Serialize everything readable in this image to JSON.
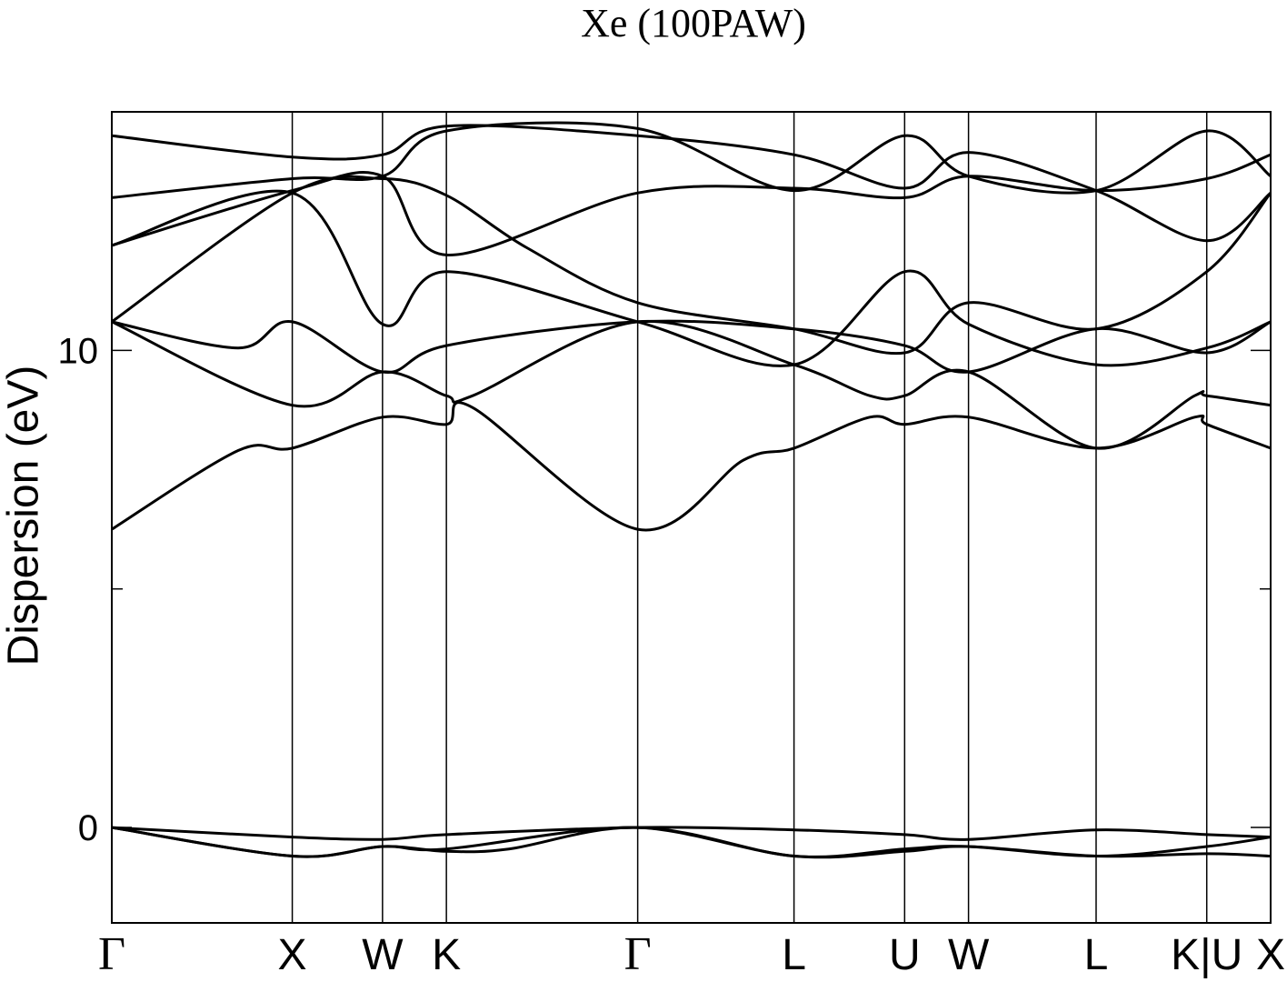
{
  "chart_data": {
    "type": "line",
    "title": "Xe (100PAW)",
    "xlabel": "",
    "ylabel": "Dispersion (eV)",
    "ylim": [
      -2,
      15
    ],
    "yticks": [
      0,
      10
    ],
    "ytick_labels": [
      "0",
      "10"
    ],
    "grid": false,
    "legend": "none",
    "kpoints": [
      {
        "label": "Γ",
        "x": 0.0
      },
      {
        "label": "X",
        "x": 1.0
      },
      {
        "label": "W",
        "x": 1.5
      },
      {
        "label": "K",
        "x": 1.854
      },
      {
        "label": "Γ",
        "x": 2.914
      },
      {
        "label": "L",
        "x": 3.78
      },
      {
        "label": "U",
        "x": 4.393
      },
      {
        "label": "W",
        "x": 4.747
      },
      {
        "label": "L",
        "x": 5.454
      },
      {
        "label": "K|U",
        "x": 6.067
      },
      {
        "label": "X",
        "x": 6.421
      }
    ],
    "series": [
      {
        "values": [
          [
            0.0,
            0.0
          ],
          [
            1.0,
            -0.2
          ],
          [
            1.5,
            -0.25
          ],
          [
            1.854,
            -0.15
          ],
          [
            2.914,
            0.0
          ],
          [
            3.78,
            -0.05
          ],
          [
            4.393,
            -0.15
          ],
          [
            4.747,
            -0.25
          ],
          [
            5.454,
            -0.05
          ],
          [
            6.067,
            -0.15
          ],
          [
            6.421,
            -0.2
          ]
        ]
      },
      {
        "values": [
          [
            0.0,
            0.0
          ],
          [
            1.0,
            -0.6
          ],
          [
            1.5,
            -0.4
          ],
          [
            1.854,
            -0.45
          ],
          [
            2.914,
            0.0
          ],
          [
            3.78,
            -0.6
          ],
          [
            4.393,
            -0.45
          ],
          [
            4.747,
            -0.4
          ],
          [
            5.454,
            -0.6
          ],
          [
            6.067,
            -0.4
          ],
          [
            6.421,
            -0.2
          ]
        ]
      },
      {
        "values": [
          [
            0.0,
            0.0
          ],
          [
            1.0,
            -0.6
          ],
          [
            1.5,
            -0.4
          ],
          [
            1.854,
            -0.5
          ],
          [
            2.2,
            -0.45
          ],
          [
            2.914,
            0.0
          ],
          [
            3.78,
            -0.6
          ],
          [
            4.393,
            -0.5
          ],
          [
            4.747,
            -0.4
          ],
          [
            5.454,
            -0.6
          ],
          [
            6.067,
            -0.55
          ],
          [
            6.421,
            -0.6
          ]
        ]
      },
      {
        "values": [
          [
            0.0,
            6.25
          ],
          [
            0.7,
            7.9
          ],
          [
            1.0,
            7.95
          ],
          [
            1.5,
            8.6
          ],
          [
            1.854,
            8.45
          ],
          [
            2.0,
            8.8
          ],
          [
            2.914,
            6.25
          ],
          [
            3.5,
            7.7
          ],
          [
            3.78,
            7.95
          ],
          [
            4.2,
            8.6
          ],
          [
            4.393,
            8.45
          ],
          [
            4.747,
            8.6
          ],
          [
            5.454,
            7.95
          ],
          [
            6.0,
            8.6
          ],
          [
            6.067,
            8.45
          ],
          [
            6.421,
            7.95
          ]
        ]
      },
      {
        "values": [
          [
            0.0,
            10.6
          ],
          [
            1.0,
            8.85
          ],
          [
            1.5,
            9.55
          ],
          [
            1.854,
            9.05
          ],
          [
            2.0,
            9.05
          ],
          [
            2.914,
            10.6
          ],
          [
            3.78,
            9.7
          ],
          [
            4.2,
            9.05
          ],
          [
            4.393,
            9.05
          ],
          [
            4.747,
            9.55
          ],
          [
            5.454,
            7.95
          ],
          [
            6.0,
            9.05
          ],
          [
            6.067,
            9.05
          ],
          [
            6.421,
            8.85
          ]
        ]
      },
      {
        "values": [
          [
            0.0,
            10.6
          ],
          [
            0.7,
            10.05
          ],
          [
            1.0,
            10.6
          ],
          [
            1.5,
            9.55
          ],
          [
            1.854,
            10.1
          ],
          [
            2.914,
            10.6
          ],
          [
            3.78,
            10.45
          ],
          [
            4.393,
            10.1
          ],
          [
            4.747,
            9.55
          ],
          [
            5.454,
            10.45
          ],
          [
            6.067,
            9.95
          ],
          [
            6.421,
            10.6
          ]
        ]
      },
      {
        "values": [
          [
            0.0,
            12.2
          ],
          [
            1.0,
            13.3
          ],
          [
            1.5,
            10.55
          ],
          [
            1.854,
            11.65
          ],
          [
            2.914,
            10.6
          ],
          [
            3.78,
            9.7
          ],
          [
            4.393,
            11.65
          ],
          [
            4.747,
            10.55
          ],
          [
            5.454,
            9.7
          ],
          [
            6.067,
            10.05
          ],
          [
            6.421,
            10.6
          ]
        ]
      },
      {
        "values": [
          [
            0.0,
            10.6
          ],
          [
            1.0,
            13.3
          ],
          [
            1.5,
            13.6
          ],
          [
            1.854,
            13.25
          ],
          [
            2.3,
            12.15
          ],
          [
            2.914,
            11.0
          ],
          [
            3.78,
            10.45
          ],
          [
            4.393,
            9.95
          ],
          [
            4.747,
            11.0
          ],
          [
            5.454,
            10.45
          ],
          [
            6.067,
            11.65
          ],
          [
            6.421,
            13.3
          ]
        ]
      },
      {
        "values": [
          [
            0.0,
            13.2
          ],
          [
            1.0,
            13.6
          ],
          [
            1.5,
            13.65
          ],
          [
            1.854,
            14.6
          ],
          [
            2.914,
            14.65
          ],
          [
            3.78,
            13.35
          ],
          [
            4.393,
            14.5
          ],
          [
            4.747,
            13.65
          ],
          [
            5.454,
            13.35
          ],
          [
            6.067,
            14.6
          ],
          [
            6.421,
            13.65
          ]
        ]
      },
      {
        "values": [
          [
            0.0,
            14.5
          ],
          [
            1.0,
            14.05
          ],
          [
            1.5,
            14.1
          ],
          [
            1.854,
            14.7
          ],
          [
            2.914,
            14.5
          ],
          [
            3.78,
            14.1
          ],
          [
            4.393,
            13.4
          ],
          [
            4.747,
            14.15
          ],
          [
            5.454,
            13.35
          ],
          [
            6.067,
            12.3
          ],
          [
            6.421,
            13.3
          ]
        ]
      },
      {
        "values": [
          [
            0.0,
            12.2
          ],
          [
            1.0,
            13.35
          ],
          [
            1.5,
            13.65
          ],
          [
            1.854,
            12.0
          ],
          [
            2.914,
            13.3
          ],
          [
            3.78,
            13.4
          ],
          [
            4.393,
            13.2
          ],
          [
            4.747,
            13.65
          ],
          [
            5.454,
            13.35
          ],
          [
            6.067,
            13.6
          ],
          [
            6.421,
            14.1
          ]
        ]
      }
    ]
  }
}
